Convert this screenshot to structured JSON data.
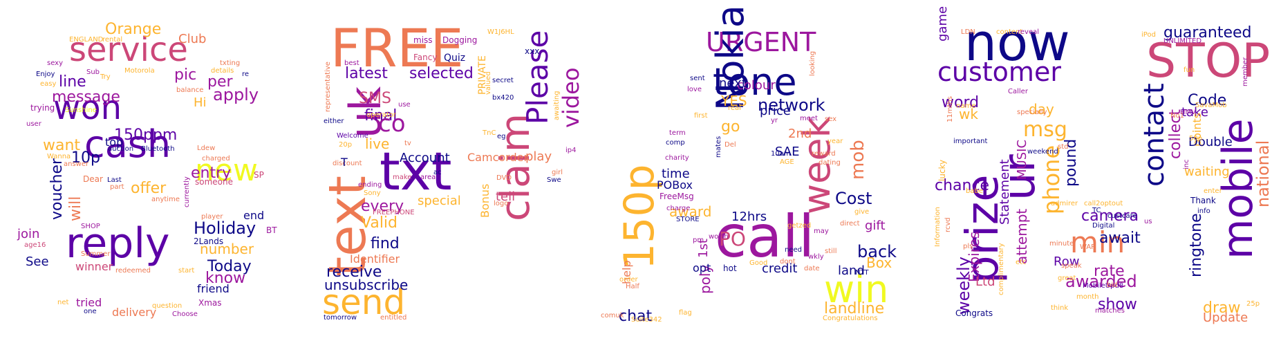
{
  "palette": {
    "c1": "#0d0887",
    "c2": "#5c01a6",
    "c3": "#9c179e",
    "c4": "#cc4778",
    "c5": "#ed7953",
    "c6": "#fdb42f",
    "c7": "#f0f921"
  },
  "words": [
    "service",
    "won",
    "cash",
    "reply",
    "new",
    "Orange",
    "Club",
    "line",
    "message",
    "apply",
    "pic",
    "per",
    "150ppm",
    "want",
    "10p",
    "top",
    "entry",
    "offer",
    "Holiday",
    "end",
    "voucher",
    "will",
    "join",
    "See",
    "winner",
    "know",
    "Today",
    "friend",
    "tried",
    "delivery",
    "number",
    "Hi",
    "Sunshine",
    "sexy",
    "Enjoy",
    "easy",
    "trying",
    "user",
    "Wanna",
    "answer",
    "Dear",
    "Last",
    "part",
    "someone",
    "charged",
    "Ldew",
    "auction",
    "Bluetooth",
    "2Lands",
    "age16",
    "Summer",
    "net",
    "one",
    "question",
    "redeemed",
    "start",
    "Xmas",
    "Choose",
    "SHOP",
    "BT",
    "SP",
    "player",
    "anytime",
    "currently",
    "ENGLAND",
    "rental",
    "Sub",
    "Try",
    "Motorola",
    "details",
    "txting",
    "re",
    "balance",
    "FREE",
    "uk",
    "text",
    "txt",
    "claim",
    "Please",
    "video",
    "latest",
    "selected",
    "SMS",
    "final",
    "co",
    "live",
    "every",
    "Valid",
    "find",
    "receive",
    "send",
    "unsubscribe",
    "Identifier",
    "special",
    "Account",
    "play",
    "Camcorder",
    "tell",
    "Bonus",
    "miss",
    "Dogging",
    "W1J6HL",
    "Fancy",
    "Quiz",
    "PRIVATE",
    "xxx",
    "secret",
    "best",
    "representative",
    "bx420",
    "operator",
    "use",
    "either",
    "Welcome",
    "20p",
    "discount",
    "T",
    "TnC",
    "eg",
    "valued",
    "awaiting",
    "ip4",
    "girl",
    "Swe",
    "DVD",
    "logo",
    "ending",
    "make",
    "area",
    "ac",
    "Sony",
    "FREEPHONE",
    "tomorrow",
    "entitled",
    "tv",
    "URGENT",
    "tone",
    "Nokia",
    "week",
    "call",
    "150p",
    "network",
    "colour",
    "next",
    "YES",
    "price",
    "go",
    "2nd",
    "SAE",
    "mob",
    "Cost",
    "back",
    "gift",
    "Box",
    "win",
    "landline",
    "award",
    "time",
    "POBox",
    "FreeMsg",
    "1st",
    "PO",
    "12hrs",
    "poly",
    "chat",
    "help",
    "credit",
    "land",
    "opt",
    "hot",
    "Good",
    "dont",
    "need",
    "wkly",
    "still",
    "sent",
    "love",
    "first",
    "real",
    "term",
    "comp",
    "charity",
    "Del",
    "mates",
    "charge",
    "STORE",
    "worth",
    "pm",
    "order",
    "Half",
    "comuk",
    "Suite342",
    "flag",
    "10am",
    "AGE",
    "getzed",
    "may",
    "direct",
    "give",
    "NTT",
    "date",
    "yr",
    "meet",
    "sex",
    "year",
    "looking",
    "reward",
    "dating",
    "Congratulations",
    "now",
    "STOP",
    "customer",
    "game",
    "word",
    "wk",
    "msg",
    "day",
    "guaranteed",
    "UNLIMITED",
    "Code",
    "contact",
    "collect",
    "take",
    "points",
    "Double",
    "waiting",
    "mobile",
    "national",
    "collection",
    "ringtone",
    "draw",
    "Update",
    "prize",
    "ur",
    "weekly",
    "Expires",
    "Ltd",
    "Statement",
    "MUSIC",
    "attempt",
    "chance",
    "min",
    "camera",
    "await",
    "rate",
    "awarded",
    "show",
    "phone",
    "pound",
    "Row",
    "MobileUpd8",
    "matches",
    "Congrats",
    "LDN",
    "content",
    "reveal",
    "iPod",
    "name",
    "important",
    "11mths",
    "lucky",
    "rcvd",
    "pls",
    "babe",
    "Caller",
    "specially",
    "weekend",
    "std",
    "admirer",
    "minute",
    "call2optout",
    "TC",
    "custcare",
    "Digital",
    "WAP",
    "speak",
    "great",
    "think",
    "month",
    "bid",
    "us",
    "Thank",
    "info",
    "inc",
    "enter",
    "25p",
    "50p",
    "No1",
    "HMV",
    "SavaMob",
    "member",
    "fun",
    "Information",
    "complimentary",
    "etc",
    "Uk"
  ]
}
